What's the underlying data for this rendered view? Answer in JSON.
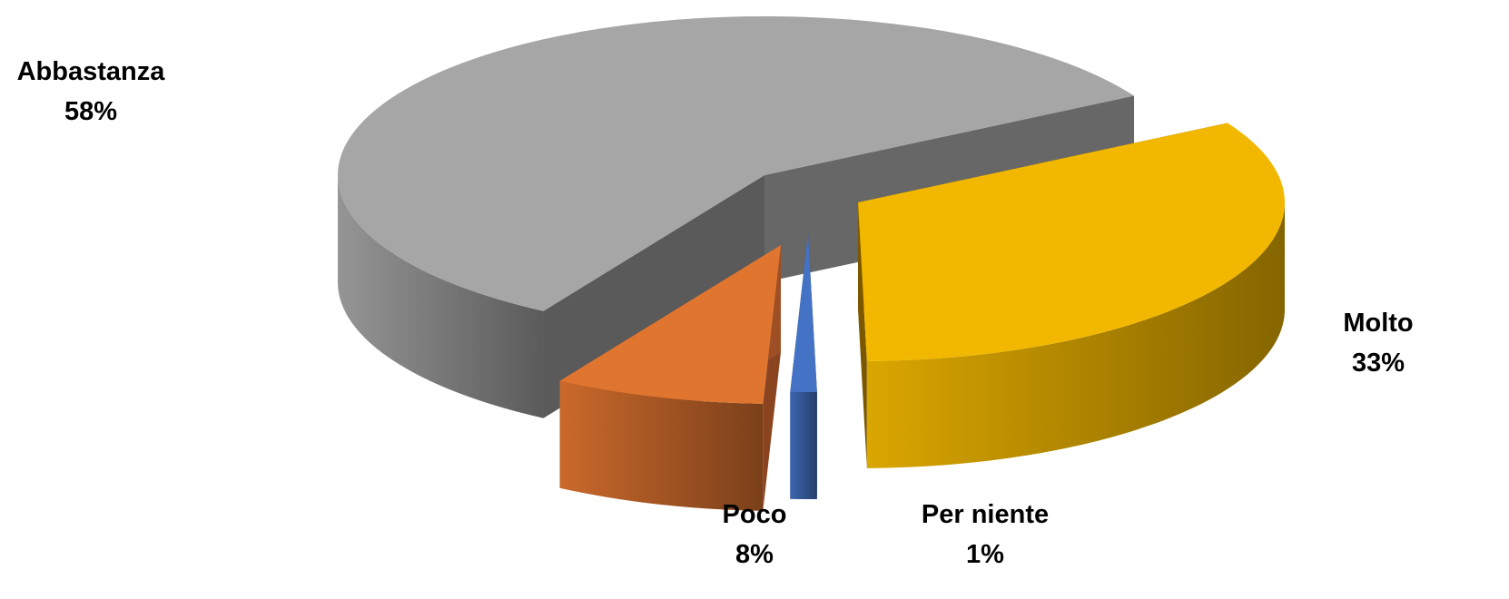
{
  "chart_data": {
    "type": "pie",
    "variant": "3d-exploded",
    "title": "",
    "start_angle_deg": -30,
    "direction": "clockwise",
    "slices": [
      {
        "label": "Molto",
        "value": 33,
        "display": "33%",
        "color": "#f2b800",
        "side_color": "#6b4c00"
      },
      {
        "label": "Per niente",
        "value": 1,
        "display": "1%",
        "color": "#4472c4",
        "side_color": "#1f2f5a"
      },
      {
        "label": "Poco",
        "value": 8,
        "display": "8%",
        "color": "#e07530",
        "side_color": "#8a4520"
      },
      {
        "label": "Abbastanza",
        "value": 58,
        "display": "58%",
        "color": "#a6a6a6",
        "side_color": "#5a5a5a"
      }
    ]
  }
}
